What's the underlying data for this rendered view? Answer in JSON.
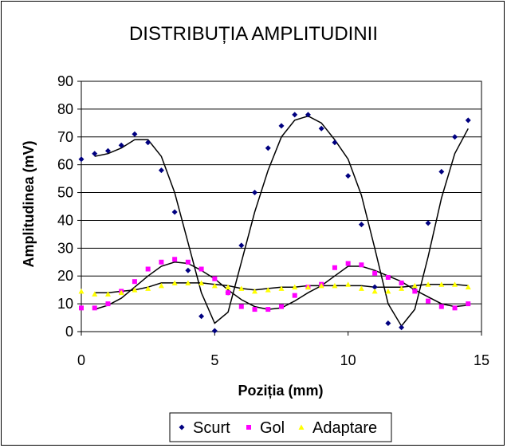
{
  "chart_data": {
    "type": "scatter",
    "title": "DISTRIBUȚIA AMPLITUDINII",
    "xlabel": "Poziția (mm)",
    "ylabel": "Amplitudinea (mV)",
    "xlim": [
      0,
      15
    ],
    "ylim": [
      0,
      90
    ],
    "xticks": [
      "0",
      "5",
      "10",
      "15"
    ],
    "yticks": [
      "0",
      "10",
      "20",
      "30",
      "40",
      "50",
      "60",
      "70",
      "80",
      "90"
    ],
    "grid": "horizontal",
    "legend_position": "bottom",
    "series": [
      {
        "name": "Scurt",
        "marker": "diamond",
        "color": "#000080",
        "points": [
          [
            0,
            62
          ],
          [
            0.5,
            64
          ],
          [
            1,
            65
          ],
          [
            1.5,
            67
          ],
          [
            2,
            71
          ],
          [
            2.5,
            68
          ],
          [
            3,
            58
          ],
          [
            3.5,
            43
          ],
          [
            4,
            22
          ],
          [
            4.5,
            5.5
          ],
          [
            5,
            0.3
          ],
          [
            5.5,
            14
          ],
          [
            6,
            31
          ],
          [
            6.5,
            50
          ],
          [
            7,
            66
          ],
          [
            7.5,
            74
          ],
          [
            8,
            78
          ],
          [
            8.5,
            78
          ],
          [
            9,
            73
          ],
          [
            9.5,
            68
          ],
          [
            10,
            56
          ],
          [
            10.5,
            38.5
          ],
          [
            11,
            16
          ],
          [
            11.5,
            3
          ],
          [
            12,
            1.5
          ],
          [
            12.5,
            15
          ],
          [
            13,
            39
          ],
          [
            13.5,
            57.5
          ],
          [
            14,
            70
          ],
          [
            14.5,
            76
          ]
        ],
        "trend": [
          [
            0.5,
            63
          ],
          [
            1,
            64
          ],
          [
            1.5,
            66
          ],
          [
            2,
            69
          ],
          [
            2.5,
            69
          ],
          [
            3,
            63
          ],
          [
            3.5,
            50
          ],
          [
            4,
            32
          ],
          [
            4.5,
            14
          ],
          [
            5,
            3
          ],
          [
            5.5,
            7
          ],
          [
            6,
            25
          ],
          [
            6.5,
            43
          ],
          [
            7,
            58
          ],
          [
            7.5,
            70
          ],
          [
            8,
            76
          ],
          [
            8.5,
            77.5
          ],
          [
            9,
            75
          ],
          [
            9.5,
            69
          ],
          [
            10,
            62
          ],
          [
            10.5,
            49
          ],
          [
            11,
            30
          ],
          [
            11.5,
            10
          ],
          [
            12,
            2
          ],
          [
            12.5,
            8
          ],
          [
            13,
            27
          ],
          [
            13.5,
            48
          ],
          [
            14,
            64
          ],
          [
            14.5,
            73
          ]
        ]
      },
      {
        "name": "Gol",
        "marker": "square",
        "color": "#ff00ff",
        "points": [
          [
            0,
            8.5
          ],
          [
            0.5,
            8.5
          ],
          [
            1,
            10
          ],
          [
            1.5,
            14.5
          ],
          [
            2,
            18
          ],
          [
            2.5,
            22.5
          ],
          [
            3,
            25
          ],
          [
            3.5,
            26
          ],
          [
            4,
            25
          ],
          [
            4.5,
            22.5
          ],
          [
            5,
            19
          ],
          [
            5.5,
            14
          ],
          [
            6,
            9
          ],
          [
            6.5,
            8
          ],
          [
            7,
            8
          ],
          [
            7.5,
            9
          ],
          [
            8,
            13
          ],
          [
            8.5,
            16
          ],
          [
            9,
            17
          ],
          [
            9.5,
            23
          ],
          [
            10,
            24.5
          ],
          [
            10.5,
            24
          ],
          [
            11,
            21
          ],
          [
            11.5,
            19.5
          ],
          [
            12,
            17.5
          ],
          [
            12.5,
            14.5
          ],
          [
            13,
            11
          ],
          [
            13.5,
            9
          ],
          [
            14,
            8.5
          ],
          [
            14.5,
            10
          ]
        ],
        "trend": [
          [
            0.5,
            8
          ],
          [
            1,
            9.5
          ],
          [
            1.5,
            12
          ],
          [
            2,
            16
          ],
          [
            2.5,
            20
          ],
          [
            3,
            23.5
          ],
          [
            3.5,
            25
          ],
          [
            4,
            24.5
          ],
          [
            4.5,
            22
          ],
          [
            5,
            19
          ],
          [
            5.5,
            15
          ],
          [
            6,
            11.5
          ],
          [
            6.5,
            9
          ],
          [
            7,
            8
          ],
          [
            7.5,
            8.5
          ],
          [
            8,
            11
          ],
          [
            8.5,
            14
          ],
          [
            9,
            16.5
          ],
          [
            9.5,
            20
          ],
          [
            10,
            23.5
          ],
          [
            10.5,
            23.5
          ],
          [
            11,
            22
          ],
          [
            11.5,
            20
          ],
          [
            12,
            18
          ],
          [
            12.5,
            15
          ],
          [
            13,
            12.5
          ],
          [
            13.5,
            10
          ],
          [
            14,
            9
          ],
          [
            14.5,
            9.5
          ]
        ]
      },
      {
        "name": "Adaptare",
        "marker": "triangle",
        "color": "#ffff00",
        "points": [
          [
            0,
            14.5
          ],
          [
            0.5,
            13.5
          ],
          [
            1,
            13.5
          ],
          [
            1.5,
            14
          ],
          [
            2,
            15
          ],
          [
            2.5,
            15.5
          ],
          [
            3,
            16.5
          ],
          [
            3.5,
            17.5
          ],
          [
            4,
            17.5
          ],
          [
            4.5,
            17.5
          ],
          [
            5,
            16.5
          ],
          [
            5.5,
            16
          ],
          [
            6,
            15.5
          ],
          [
            6.5,
            14.5
          ],
          [
            7,
            15
          ],
          [
            7.5,
            15.5
          ],
          [
            8,
            16
          ],
          [
            8.5,
            16
          ],
          [
            9,
            16.5
          ],
          [
            9.5,
            16.5
          ],
          [
            10,
            17
          ],
          [
            10.5,
            15.5
          ],
          [
            11,
            14.5
          ],
          [
            11.5,
            14.5
          ],
          [
            12,
            15.5
          ],
          [
            12.5,
            16.5
          ],
          [
            13,
            17
          ],
          [
            13.5,
            17
          ],
          [
            14,
            17
          ],
          [
            14.5,
            16
          ]
        ],
        "trend": [
          [
            0.5,
            14
          ],
          [
            1,
            14
          ],
          [
            1.5,
            14.5
          ],
          [
            2,
            15
          ],
          [
            2.5,
            16
          ],
          [
            3,
            17.5
          ],
          [
            3.5,
            17.5
          ],
          [
            4,
            17.5
          ],
          [
            4.5,
            17.5
          ],
          [
            5,
            17
          ],
          [
            5.5,
            16.5
          ],
          [
            6,
            15.5
          ],
          [
            6.5,
            15
          ],
          [
            7,
            15.5
          ],
          [
            7.5,
            16
          ],
          [
            8,
            16
          ],
          [
            8.5,
            16.5
          ],
          [
            9,
            16.5
          ],
          [
            9.5,
            16.5
          ],
          [
            10,
            16.5
          ],
          [
            10.5,
            16.5
          ],
          [
            11,
            16
          ],
          [
            11.5,
            16
          ],
          [
            12,
            16
          ],
          [
            12.5,
            16.5
          ],
          [
            13,
            17
          ],
          [
            13.5,
            17
          ],
          [
            14,
            17
          ],
          [
            14.5,
            16.5
          ]
        ]
      }
    ]
  }
}
